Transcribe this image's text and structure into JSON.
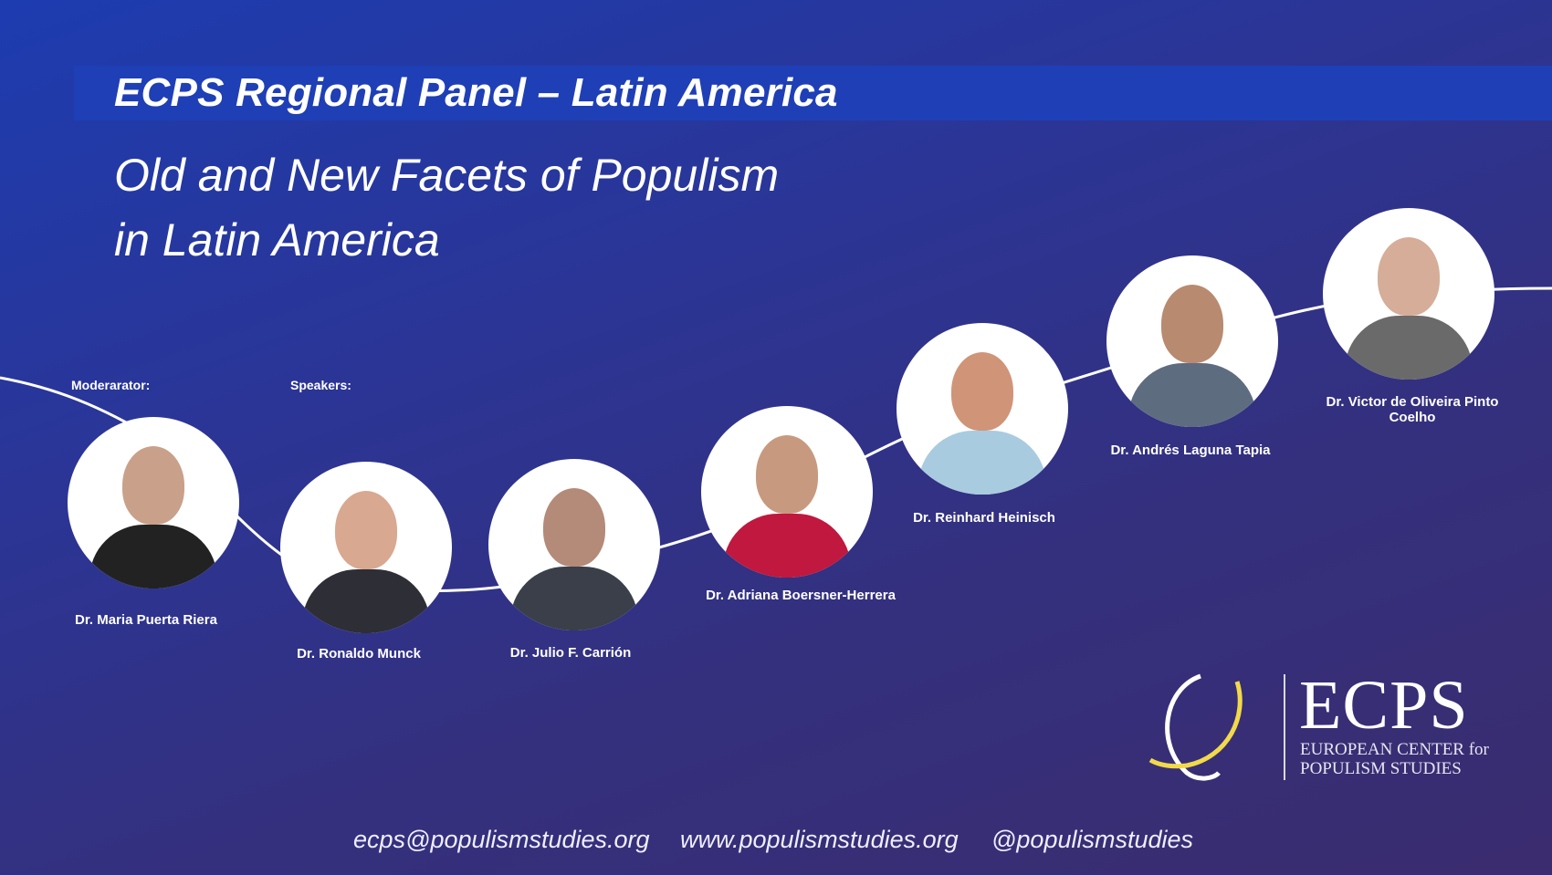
{
  "header": {
    "title": "ECPS Regional Panel – Latin America",
    "subtitle_line1": "Old and New Facets of Populism",
    "subtitle_line2": "in Latin America"
  },
  "roles": {
    "moderator_label": "Moderarator:",
    "speakers_label": "Speakers:"
  },
  "people": [
    {
      "name": "Dr. Maria Puerta Riera",
      "role": "moderator"
    },
    {
      "name": "Dr. Ronaldo Munck",
      "role": "speaker"
    },
    {
      "name": "Dr. Julio F. Carrión",
      "role": "speaker"
    },
    {
      "name": "Dr. Adriana Boersner-Herrera",
      "role": "speaker"
    },
    {
      "name": "Dr. Reinhard Heinisch",
      "role": "speaker"
    },
    {
      "name": "Dr. Andrés Laguna Tapia",
      "role": "speaker"
    },
    {
      "name_line1": "Dr. Victor de Oliveira Pinto",
      "name_line2": "Coelho",
      "role": "speaker"
    }
  ],
  "logo": {
    "acronym": "ECPS",
    "line1": "EUROPEAN CENTER for",
    "line2": "POPULISM STUDIES",
    "accent": "#f2d94a"
  },
  "footer": {
    "email": "ecps@populismstudies.org",
    "website": "www.populismstudies.org",
    "handle": "@populismstudies"
  },
  "colors": {
    "background_top": "#1d3cb0",
    "background_bottom": "#3a2c6e",
    "band": "#1f3fb6"
  }
}
